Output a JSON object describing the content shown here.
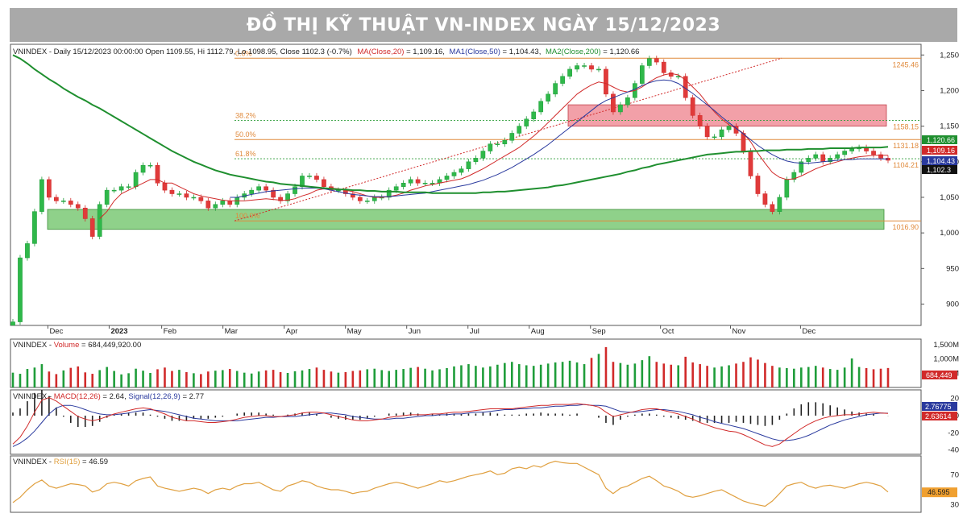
{
  "title": "ĐỒ THỊ KỸ THUẬT VN-INDEX NGÀY 15/12/2023",
  "colors": {
    "up": "#1f9d3a",
    "down": "#d12a2a",
    "ma20": "#d12a2a",
    "ma50": "#2a3a9e",
    "ma200": "#1f8f2f",
    "fib": "#e08a3c",
    "rsi": "#e0a040",
    "support_zone": "#8fd18a",
    "resist_zone": "#f2a0a8"
  },
  "panels": {
    "price": {
      "legend": {
        "prefix": "VNINDEX - Daily 15/12/2023 00:00:00 Open 1109.55, Hi 1112.79, Lo 1098.95, Close 1102.3 (-0.7%)",
        "ma": "MA(Close,20)",
        "ma_val": " = 1,109.16,",
        "ma1": "MA1(Close,50)",
        "ma1_val": " = 1,104.43,",
        "ma2": "MA2(Close,200)",
        "ma2_val": " = 1,120.66"
      },
      "y_ticks": [
        "1,250",
        "1,200",
        "1,150",
        "1,100",
        "1,050",
        "1,000",
        "950",
        "900"
      ],
      "last_labels": [
        "1,120.66",
        "1,109.16",
        "1,104.43",
        "1,102.3"
      ]
    },
    "volume": {
      "legend_prefix": "VNINDEX - ",
      "legend_name": "Volume",
      "legend_val": " = 684,449,920.00",
      "y_ticks": [
        "1,500M",
        "1,000M",
        "500M"
      ],
      "last_label": "684,449"
    },
    "macd": {
      "legend_prefix": "VNINDEX - ",
      "macd_name": "MACD(12,26)",
      "macd_val": " = 2.64, ",
      "signal_name": "Signal(12,26,9)",
      "signal_val": " = 2.77",
      "y_ticks": [
        "20",
        "0",
        "-20",
        "-40"
      ],
      "last_labels": [
        "2.76775",
        "2.63614"
      ]
    },
    "rsi": {
      "legend_prefix": "VNINDEX - ",
      "rsi_name": "RSI(15)",
      "rsi_val": " = 46.59",
      "y_ticks": [
        "70",
        "30"
      ],
      "last_label": "46.595"
    }
  },
  "fibonacci": [
    {
      "label": "0.0%",
      "value": 1245.46,
      "value_label": "1245.46"
    },
    {
      "label": "38.2%",
      "value": 1158.15,
      "value_label": "1158.15"
    },
    {
      "label": "50.0%",
      "value": 1131.18,
      "value_label": "1131.18"
    },
    {
      "label": "61.8%",
      "value": 1104.21,
      "value_label": "1104.21"
    },
    {
      "label": "100.0%",
      "value": 1016.9,
      "value_label": "1016.90"
    }
  ],
  "chart_data": {
    "type": "line",
    "x_labels": [
      "Dec",
      "2023",
      "Feb",
      "Mar",
      "Apr",
      "May",
      "Jun",
      "Jul",
      "Aug",
      "Sep",
      "Oct",
      "Nov",
      "Dec"
    ],
    "ylim": [
      870,
      1265
    ],
    "series": [
      {
        "name": "VNINDEX",
        "values": [
          875,
          965,
          985,
          1030,
          1075,
          1050,
          1045,
          1045,
          1040,
          1035,
          1020,
          995,
          1040,
          1060,
          1060,
          1065,
          1065,
          1085,
          1095,
          1095,
          1070,
          1060,
          1055,
          1055,
          1050,
          1050,
          1045,
          1035,
          1040,
          1045,
          1040,
          1050,
          1055,
          1060,
          1065,
          1060,
          1050,
          1045,
          1055,
          1065,
          1080,
          1080,
          1075,
          1065,
          1060,
          1060,
          1055,
          1050,
          1045,
          1045,
          1050,
          1050,
          1060,
          1065,
          1070,
          1075,
          1070,
          1070,
          1070,
          1075,
          1080,
          1085,
          1090,
          1100,
          1105,
          1115,
          1125,
          1125,
          1130,
          1140,
          1150,
          1160,
          1170,
          1185,
          1195,
          1210,
          1220,
          1230,
          1235,
          1235,
          1230,
          1230,
          1195,
          1170,
          1180,
          1190,
          1210,
          1235,
          1245,
          1240,
          1225,
          1220,
          1220,
          1190,
          1165,
          1150,
          1135,
          1135,
          1145,
          1150,
          1140,
          1115,
          1080,
          1055,
          1040,
          1030,
          1050,
          1075,
          1085,
          1100,
          1105,
          1110,
          1100,
          1105,
          1110,
          1115,
          1118,
          1120,
          1115,
          1110,
          1105,
          1102
        ]
      },
      {
        "name": "MA(Close,20)",
        "values": [
          null,
          null,
          null,
          null,
          null,
          null,
          null,
          null,
          null,
          null,
          null,
          null,
          1020,
          1030,
          1045,
          1055,
          1060,
          1065,
          1070,
          1075,
          1075,
          1070,
          1070,
          1065,
          1060,
          1055,
          1052,
          1050,
          1048,
          1046,
          1045,
          1045,
          1045,
          1046,
          1047,
          1048,
          1047,
          1046,
          1046,
          1048,
          1052,
          1055,
          1060,
          1062,
          1063,
          1062,
          1060,
          1058,
          1055,
          1052,
          1050,
          1050,
          1051,
          1053,
          1056,
          1060,
          1063,
          1066,
          1068,
          1070,
          1072,
          1074,
          1076,
          1080,
          1085,
          1090,
          1096,
          1102,
          1108,
          1114,
          1120,
          1128,
          1136,
          1145,
          1155,
          1165,
          1175,
          1185,
          1195,
          1202,
          1208,
          1212,
          1210,
          1205,
          1200,
          1198,
          1200,
          1205,
          1212,
          1218,
          1222,
          1224,
          1222,
          1215,
          1205,
          1195,
          1182,
          1170,
          1160,
          1152,
          1147,
          1140,
          1128,
          1112,
          1098,
          1085,
          1078,
          1075,
          1076,
          1080,
          1085,
          1090,
          1094,
          1097,
          1100,
          1103,
          1105,
          1107,
          1108,
          1109,
          1109,
          1109
        ]
      },
      {
        "name": "MA1(Close,50)",
        "values": [
          null,
          null,
          null,
          null,
          null,
          null,
          null,
          null,
          null,
          null,
          null,
          null,
          null,
          null,
          null,
          null,
          null,
          null,
          null,
          null,
          null,
          null,
          null,
          null,
          null,
          null,
          null,
          null,
          null,
          null,
          1050,
          1050,
          1052,
          1054,
          1056,
          1058,
          1059,
          1060,
          1061,
          1062,
          1063,
          1063,
          1063,
          1062,
          1060,
          1058,
          1056,
          1054,
          1053,
          1052,
          1051,
          1051,
          1051,
          1052,
          1053,
          1054,
          1055,
          1056,
          1058,
          1060,
          1062,
          1064,
          1066,
          1068,
          1071,
          1074,
          1078,
          1082,
          1087,
          1092,
          1098,
          1104,
          1110,
          1117,
          1124,
          1132,
          1140,
          1148,
          1156,
          1164,
          1172,
          1180,
          1186,
          1190,
          1194,
          1198,
          1202,
          1207,
          1211,
          1214,
          1215,
          1214,
          1210,
          1203,
          1196,
          1188,
          1180,
          1172,
          1163,
          1155,
          1147,
          1139,
          1131,
          1123,
          1116,
          1110,
          1105,
          1101,
          1099,
          1098,
          1098,
          1099,
          1100,
          1101,
          1102,
          1103,
          1103,
          1104,
          1104,
          1104,
          1104,
          1104
        ]
      },
      {
        "name": "MA2(Close,200)",
        "values": [
          1250,
          1245,
          1238,
          1230,
          1223,
          1216,
          1210,
          1203,
          1197,
          1191,
          1186,
          1180,
          1175,
          1169,
          1163,
          1157,
          1151,
          1145,
          1139,
          1133,
          1127,
          1121,
          1115,
          1110,
          1105,
          1100,
          1096,
          1092,
          1088,
          1085,
          1082,
          1080,
          1078,
          1076,
          1074,
          1072,
          1071,
          1069,
          1068,
          1067,
          1066,
          1065,
          1064,
          1063,
          1062,
          1061,
          1061,
          1060,
          1060,
          1059,
          1059,
          1058,
          1058,
          1058,
          1057,
          1057,
          1057,
          1057,
          1056,
          1056,
          1056,
          1056,
          1056,
          1056,
          1056,
          1057,
          1057,
          1058,
          1058,
          1059,
          1060,
          1061,
          1062,
          1063,
          1064,
          1066,
          1067,
          1069,
          1071,
          1073,
          1075,
          1077,
          1079,
          1081,
          1083,
          1086,
          1088,
          1091,
          1093,
          1096,
          1098,
          1100,
          1102,
          1104,
          1106,
          1108,
          1110,
          1111,
          1112,
          1113,
          1114,
          1114,
          1115,
          1115,
          1116,
          1116,
          1116,
          1117,
          1117,
          1117,
          1118,
          1118,
          1118,
          1119,
          1119,
          1119,
          1119,
          1120,
          1120,
          1120,
          1120,
          1121
        ]
      }
    ],
    "volume": [
      520,
      480,
      650,
      700,
      820,
      560,
      470,
      600,
      690,
      740,
      530,
      480,
      610,
      720,
      580,
      460,
      500,
      660,
      590,
      510,
      640,
      700,
      580,
      620,
      540,
      500,
      470,
      560,
      590,
      610,
      650,
      580,
      520,
      490,
      560,
      600,
      620,
      540,
      510,
      570,
      600,
      650,
      700,
      620,
      560,
      520,
      540,
      580,
      600,
      640,
      660,
      610,
      580,
      620,
      650,
      690,
      720,
      660,
      600,
      640,
      680,
      740,
      780,
      820,
      760,
      700,
      740,
      800,
      860,
      900,
      820,
      780,
      760,
      800,
      840,
      880,
      900,
      940,
      880,
      820,
      1040,
      1180,
      1420,
      900,
      860,
      800,
      840,
      960,
      1100,
      900,
      840,
      800,
      780,
      1080,
      880,
      820,
      760,
      700,
      740,
      780,
      840,
      900,
      1060,
      980,
      860,
      760,
      700,
      680,
      660,
      700,
      720,
      760,
      700,
      650,
      620,
      700,
      1020,
      720,
      680,
      640,
      660,
      684
    ],
    "volume_ylim": [
      0,
      1700
    ],
    "macd": [
      -33,
      -25,
      -12,
      4,
      18,
      21,
      17,
      11,
      5,
      -1,
      -4,
      -6,
      -4,
      -1,
      2,
      4,
      6,
      8,
      9,
      8,
      5,
      2,
      -2,
      -4,
      -6,
      -6,
      -7,
      -8,
      -8,
      -7,
      -6,
      -4,
      -2,
      -1,
      0,
      0,
      -1,
      -1,
      0,
      1,
      3,
      4,
      4,
      3,
      1,
      -1,
      -3,
      -5,
      -6,
      -6,
      -5,
      -4,
      -2,
      -1,
      0,
      1,
      1,
      1,
      2,
      2,
      3,
      4,
      4,
      5,
      6,
      7,
      8,
      8,
      8,
      8,
      9,
      10,
      11,
      12,
      12,
      13,
      13,
      13,
      14,
      13,
      12,
      10,
      4,
      -1,
      1,
      3,
      5,
      7,
      8,
      8,
      6,
      4,
      2,
      -1,
      -4,
      -8,
      -11,
      -14,
      -16,
      -18,
      -19,
      -22,
      -26,
      -30,
      -34,
      -36,
      -33,
      -27,
      -21,
      -15,
      -10,
      -6,
      -3,
      -1,
      0,
      1,
      1,
      2,
      3,
      4,
      3,
      2.64
    ],
    "signal": [
      -36,
      -32,
      -26,
      -18,
      -8,
      2,
      9,
      12,
      12,
      10,
      7,
      4,
      2,
      1,
      1,
      2,
      3,
      5,
      6,
      7,
      6,
      5,
      3,
      1,
      -1,
      -3,
      -4,
      -5,
      -6,
      -6,
      -6,
      -6,
      -5,
      -4,
      -3,
      -2,
      -2,
      -1,
      -1,
      -1,
      0,
      1,
      2,
      3,
      3,
      2,
      1,
      -1,
      -2,
      -3,
      -4,
      -4,
      -4,
      -3,
      -3,
      -2,
      -1,
      0,
      0,
      1,
      1,
      2,
      2,
      3,
      4,
      4,
      5,
      6,
      7,
      7,
      8,
      8,
      9,
      9,
      10,
      11,
      11,
      12,
      12,
      13,
      12,
      12,
      11,
      8,
      5,
      4,
      4,
      5,
      6,
      7,
      7,
      6,
      5,
      3,
      1,
      -2,
      -4,
      -7,
      -9,
      -11,
      -13,
      -15,
      -18,
      -21,
      -24,
      -27,
      -29,
      -29,
      -28,
      -26,
      -23,
      -19,
      -15,
      -11,
      -8,
      -5,
      -3,
      -1,
      1,
      2,
      3,
      2.77
    ],
    "macd_ylim": [
      -45,
      30
    ],
    "rsi": [
      33,
      40,
      50,
      58,
      63,
      55,
      52,
      55,
      58,
      57,
      55,
      47,
      50,
      58,
      60,
      58,
      55,
      62,
      65,
      67,
      55,
      52,
      50,
      48,
      50,
      52,
      50,
      45,
      50,
      52,
      50,
      55,
      58,
      58,
      60,
      55,
      50,
      48,
      55,
      58,
      62,
      60,
      55,
      52,
      50,
      50,
      48,
      45,
      47,
      48,
      52,
      55,
      58,
      60,
      58,
      55,
      52,
      55,
      58,
      62,
      60,
      62,
      65,
      68,
      70,
      72,
      75,
      70,
      72,
      78,
      80,
      78,
      82,
      80,
      85,
      88,
      86,
      85,
      85,
      80,
      75,
      70,
      52,
      45,
      52,
      55,
      60,
      65,
      68,
      62,
      55,
      52,
      48,
      42,
      40,
      42,
      45,
      48,
      50,
      45,
      40,
      35,
      32,
      30,
      28,
      35,
      45,
      55,
      58,
      60,
      55,
      52,
      55,
      56,
      54,
      52,
      55,
      58,
      60,
      58,
      55,
      47
    ]
  }
}
